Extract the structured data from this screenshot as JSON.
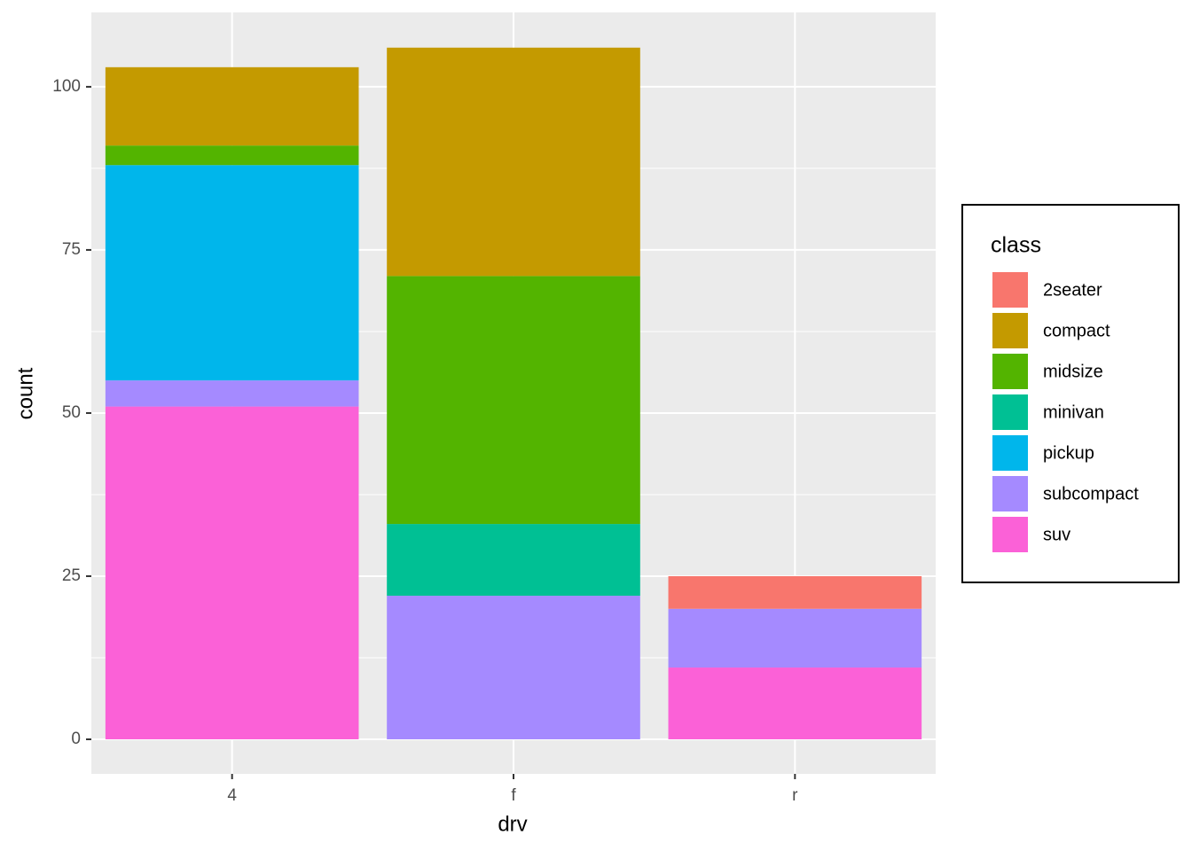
{
  "chart_data": {
    "type": "bar",
    "stacked": true,
    "x_label": "drv",
    "y_label": "count",
    "categories": [
      "4",
      "f",
      "r"
    ],
    "series": [
      {
        "name": "2seater",
        "color": "#F8766D",
        "values": [
          0,
          0,
          5
        ]
      },
      {
        "name": "compact",
        "color": "#C49A00",
        "values": [
          12,
          35,
          0
        ]
      },
      {
        "name": "midsize",
        "color": "#53B400",
        "values": [
          3,
          38,
          0
        ]
      },
      {
        "name": "minivan",
        "color": "#00C094",
        "values": [
          0,
          11,
          0
        ]
      },
      {
        "name": "pickup",
        "color": "#00B6EB",
        "values": [
          33,
          0,
          0
        ]
      },
      {
        "name": "subcompact",
        "color": "#A58AFF",
        "values": [
          4,
          22,
          9
        ]
      },
      {
        "name": "suv",
        "color": "#FB61D7",
        "values": [
          51,
          0,
          11
        ]
      }
    ],
    "legend_title": "class",
    "legend_position": "right",
    "ylim": [
      -5.3,
      111.4
    ],
    "yticks": [
      0,
      25,
      50,
      75,
      100
    ],
    "grid": true
  }
}
